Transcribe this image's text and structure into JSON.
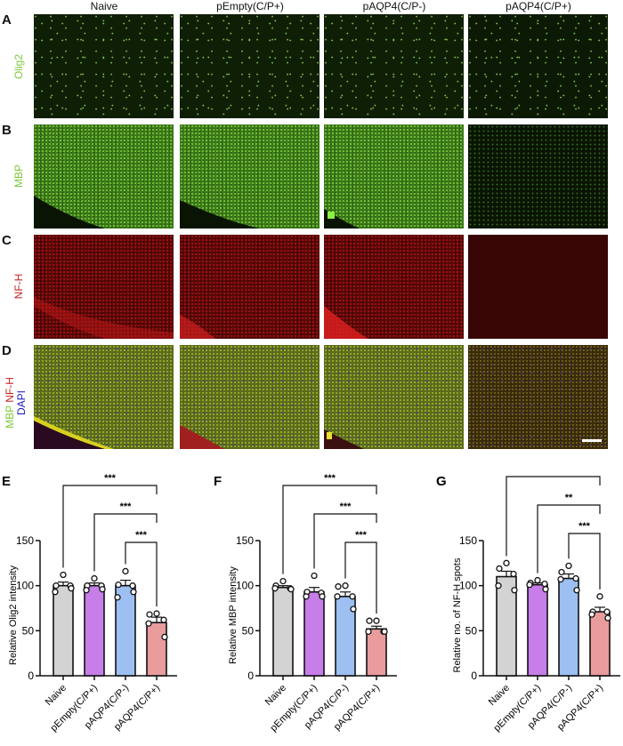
{
  "figure": {
    "columns": [
      "Naive",
      "pEmpty(C/P+)",
      "pAQP4(C/P-)",
      "pAQP4(C/P+)"
    ],
    "rows": [
      {
        "letter": "A",
        "label": "Olig2",
        "label_color": "#7ec83a"
      },
      {
        "letter": "B",
        "label": "MBP",
        "label_color": "#7ec83a"
      },
      {
        "letter": "C",
        "label": "NF-H",
        "label_color": "#c82020"
      },
      {
        "letter": "D",
        "label_parts": [
          {
            "text": "MBP",
            "color": "#7ec83a"
          },
          {
            "text": "NF-H",
            "color": "#c82020"
          },
          {
            "text": "DAPI",
            "color": "#2020c0"
          }
        ]
      }
    ],
    "scale_bar": "white bar in panel D, pAQP4(C/P+)"
  },
  "chart_data": [
    {
      "panel": "E",
      "type": "bar",
      "categories": [
        "Naive",
        "pEmpty(C/P+)",
        "pAQP4(C/P-)",
        "pAQP4(C/P+)"
      ],
      "values": [
        100,
        100,
        100,
        59
      ],
      "errors": [
        4,
        3,
        6,
        6
      ],
      "points": [
        [
          112,
          100,
          100,
          93,
          97
        ],
        [
          108,
          100,
          100,
          95,
          96
        ],
        [
          116,
          101,
          100,
          87,
          93
        ],
        [
          69,
          68,
          62,
          58,
          43
        ]
      ],
      "colors": [
        "#d3d3d3",
        "#c77ee8",
        "#9dbff2",
        "#e89c9c"
      ],
      "xlabel": "",
      "ylabel": "Relative Olig2 intensity",
      "ylim": [
        0,
        150
      ],
      "yticks": [
        0,
        50,
        100,
        150
      ],
      "comparisons": [
        {
          "from": "Naive",
          "to": "pAQP4(C/P+)",
          "label": "***"
        },
        {
          "from": "pEmpty(C/P+)",
          "to": "pAQP4(C/P+)",
          "label": "***"
        },
        {
          "from": "pAQP4(C/P-)",
          "to": "pAQP4(C/P+)",
          "label": "***"
        }
      ]
    },
    {
      "panel": "F",
      "type": "bar",
      "categories": [
        "Naive",
        "pEmpty(C/P+)",
        "pAQP4(C/P-)",
        "pAQP4(C/P+)"
      ],
      "values": [
        98,
        93,
        88,
        52
      ],
      "errors": [
        2,
        5,
        5,
        3
      ],
      "points": [
        [
          105,
          100,
          97,
          97,
          96
        ],
        [
          111,
          93,
          92,
          88,
          88
        ],
        [
          100,
          99,
          88,
          88,
          74
        ],
        [
          61,
          61,
          49,
          49,
          49
        ]
      ],
      "colors": [
        "#d3d3d3",
        "#c77ee8",
        "#9dbff2",
        "#e89c9c"
      ],
      "xlabel": "",
      "ylabel": "Relative MBP intensity",
      "ylim": [
        0,
        150
      ],
      "yticks": [
        0,
        50,
        100,
        150
      ],
      "comparisons": [
        {
          "from": "Naive",
          "to": "pAQP4(C/P+)",
          "label": "***"
        },
        {
          "from": "pEmpty(C/P+)",
          "to": "pAQP4(C/P+)",
          "label": "***"
        },
        {
          "from": "pAQP4(C/P-)",
          "to": "pAQP4(C/P+)",
          "label": "***"
        }
      ]
    },
    {
      "panel": "G",
      "type": "bar",
      "categories": [
        "Naive",
        "pEmpty(C/P+)",
        "pAQP4(C/P-)",
        "pAQP4(C/P+)"
      ],
      "values": [
        110,
        101,
        108,
        71
      ],
      "errors": [
        6,
        2,
        5,
        5
      ],
      "points": [
        [
          125,
          119,
          113,
          100,
          95
        ],
        [
          106,
          103,
          102,
          101,
          96
        ],
        [
          122,
          115,
          108,
          107,
          95
        ],
        [
          88,
          71,
          71,
          68,
          64
        ]
      ],
      "colors": [
        "#d3d3d3",
        "#c77ee8",
        "#9dbff2",
        "#e89c9c"
      ],
      "xlabel": "",
      "ylabel": "Relative no. of NF-H spots",
      "ylim": [
        0,
        150
      ],
      "yticks": [
        0,
        50,
        100,
        150
      ],
      "comparisons": [
        {
          "from": "Naive",
          "to": "pAQP4(C/P+)",
          "label": "***"
        },
        {
          "from": "pEmpty(C/P+)",
          "to": "pAQP4(C/P+)",
          "label": "**"
        },
        {
          "from": "pAQP4(C/P-)",
          "to": "pAQP4(C/P+)",
          "label": "***"
        }
      ]
    }
  ]
}
